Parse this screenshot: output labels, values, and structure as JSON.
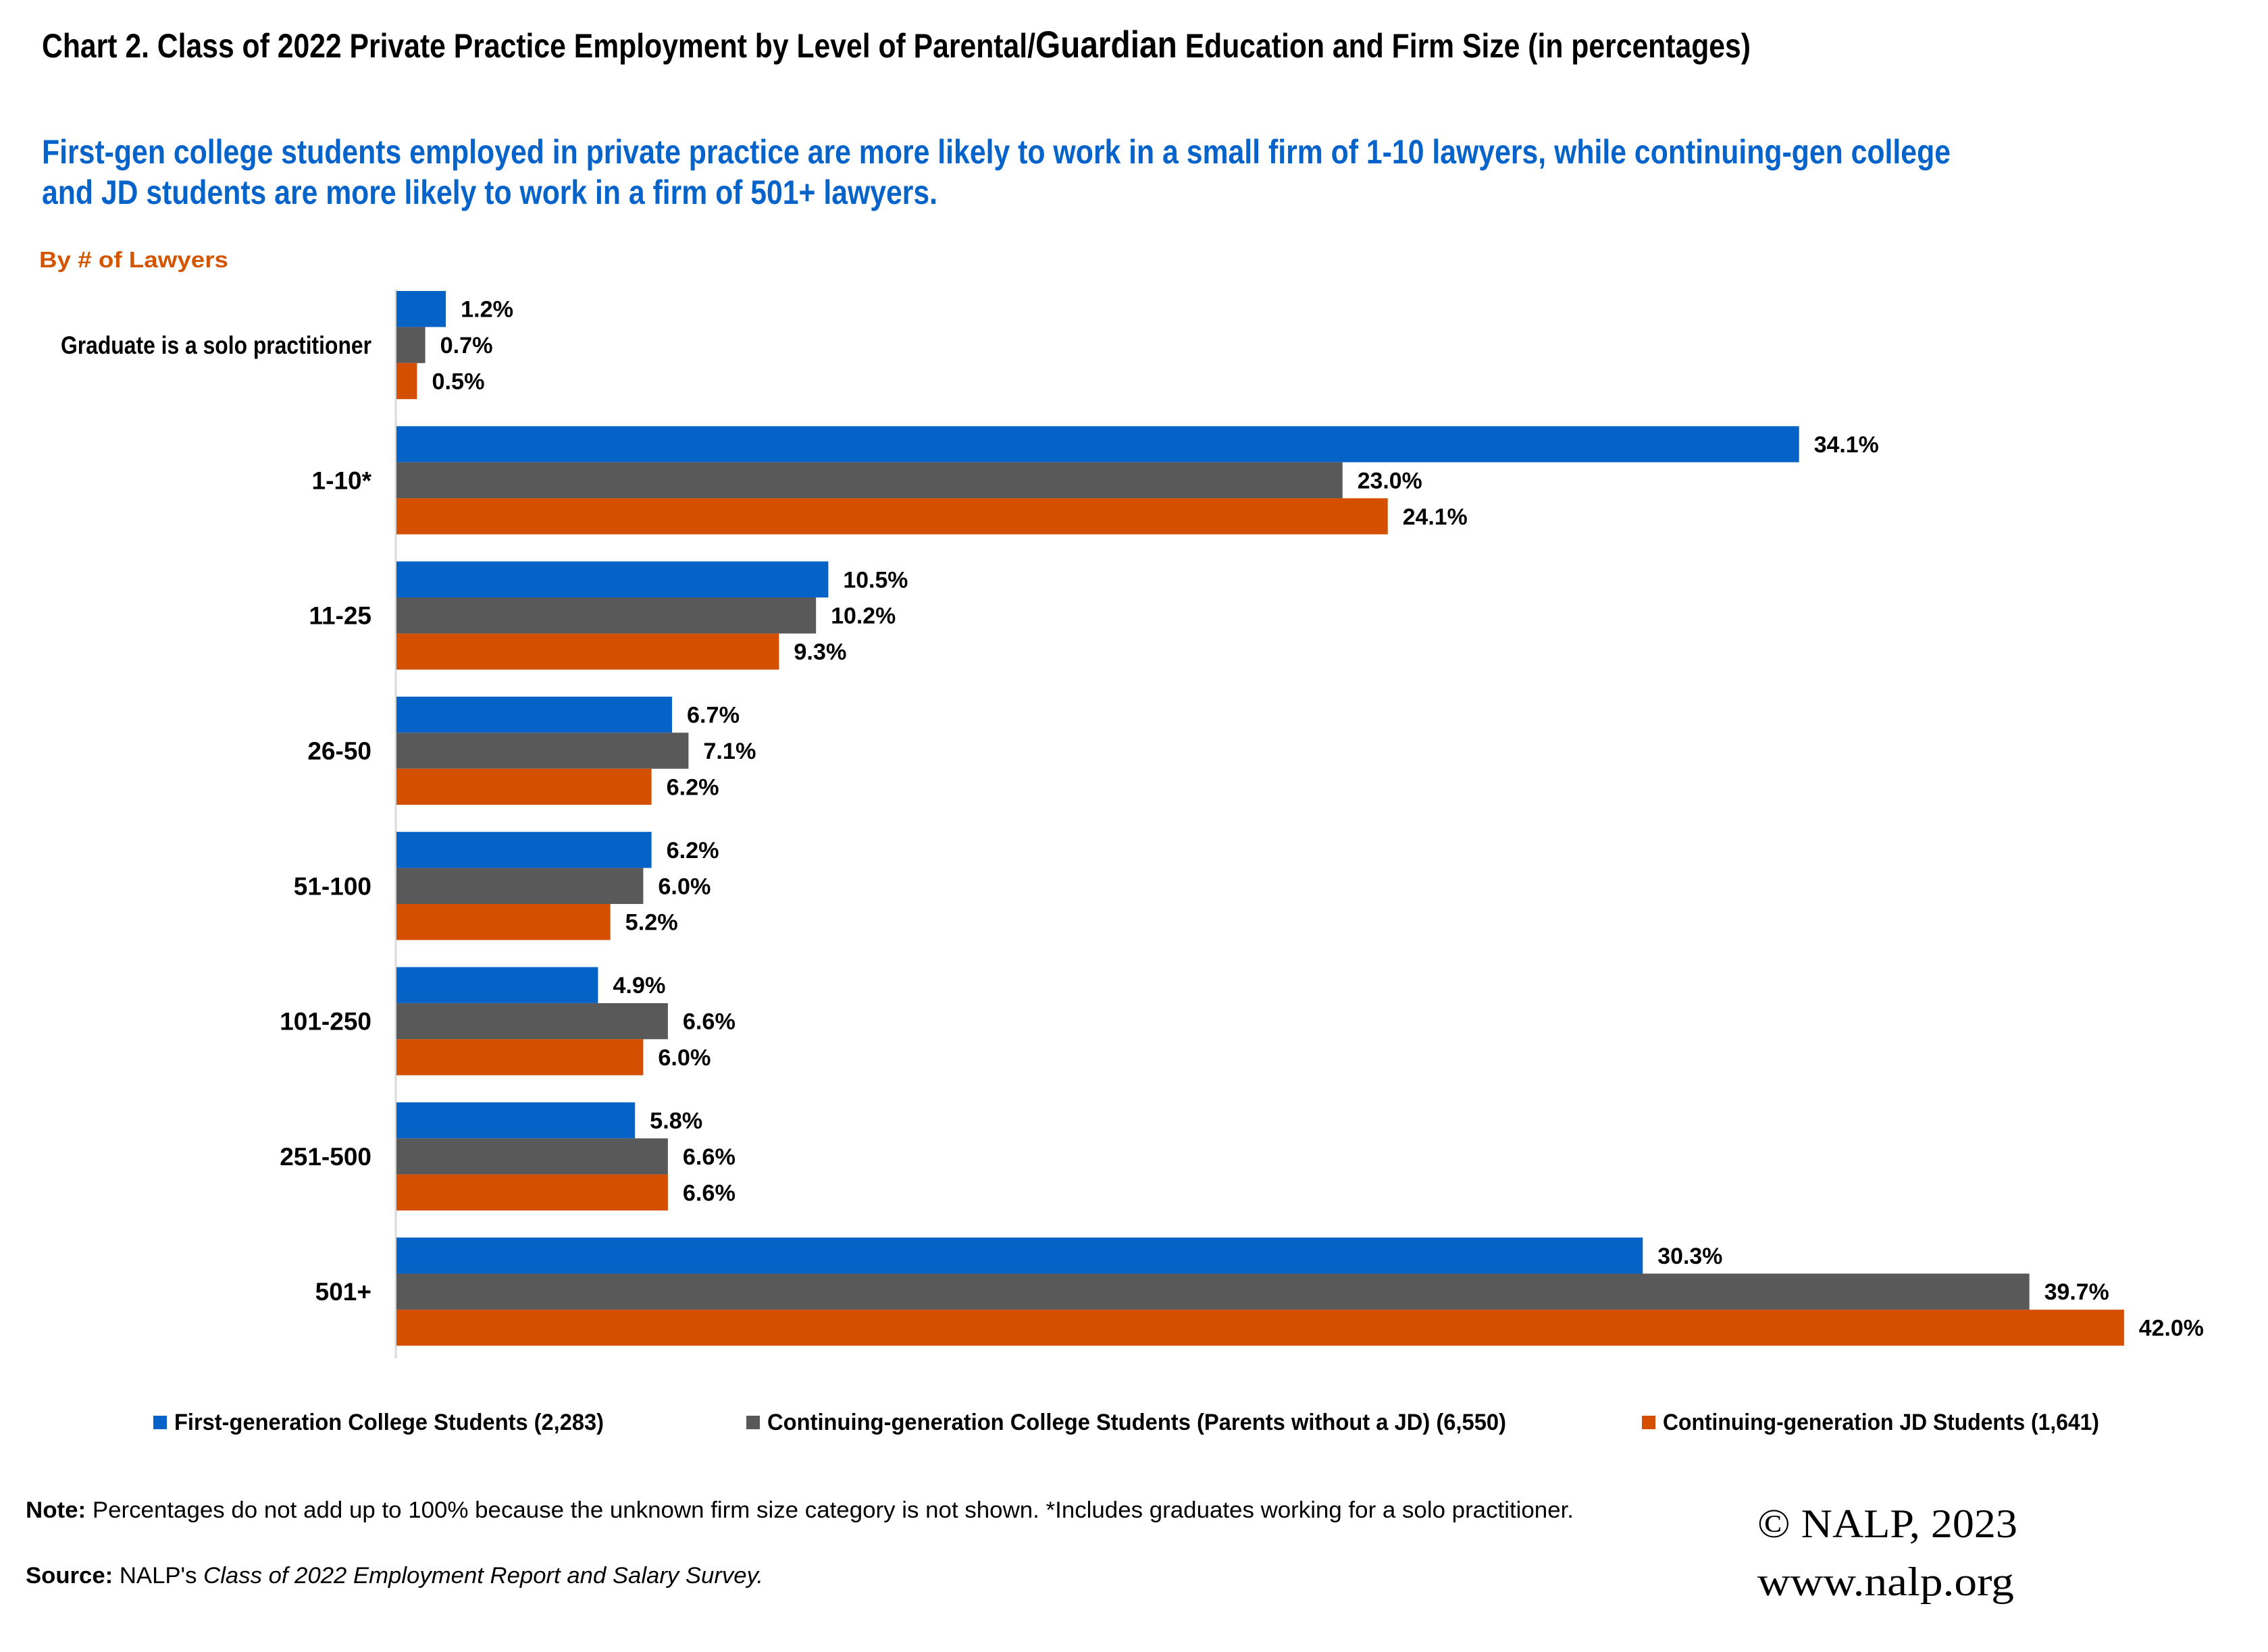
{
  "title": {
    "part1": "Chart 2. Class of 2022 Private Practice Employment by Level of Parental/",
    "part2": "Guardian",
    "part3": " Education and Firm Size (in percentages)"
  },
  "subtitle": {
    "line1": "First-gen college students employed in private practice are more likely to work in a small firm of 1-10 lawyers, while continuing-gen college",
    "line2": "and JD students are more likely to work in a firm of 501+ lawyers."
  },
  "axis_heading": "By # of Lawyers",
  "colors": {
    "first_gen": "#0563C8",
    "continuing_college": "#595959",
    "continuing_jd": "#D45000",
    "subtitle": "#0563C9",
    "axis_heading": "#D45500"
  },
  "chart_data": {
    "type": "bar",
    "orientation": "horizontal",
    "title": "Chart 2. Class of 2022 Private Practice Employment by Level of Parental/Guardian Education and Firm Size (in percentages)",
    "ylabel": "By # of Lawyers",
    "xlabel": "",
    "categories": [
      "Graduate is a solo practitioner",
      "1-10*",
      "11-25",
      "26-50",
      "51-100",
      "101-250",
      "251-500",
      "501+"
    ],
    "series": [
      {
        "name": "First-generation College Students (2,283)",
        "key": "first_gen",
        "values": [
          1.2,
          34.1,
          10.5,
          6.7,
          6.2,
          4.9,
          5.8,
          30.3
        ]
      },
      {
        "name": "Continuing-generation College Students (Parents without a JD) (6,550)",
        "key": "continuing_college",
        "values": [
          0.7,
          23.0,
          10.2,
          7.1,
          6.0,
          6.6,
          6.6,
          39.7
        ]
      },
      {
        "name": "Continuing-generation JD Students (1,641)",
        "key": "continuing_jd",
        "values": [
          0.5,
          24.1,
          9.3,
          6.2,
          5.2,
          6.0,
          6.6,
          42.0
        ]
      }
    ],
    "value_format": "percent_1dp",
    "xlim": [
      0,
      45
    ],
    "grid": false,
    "x_axis_visible": false,
    "legend_position": "bottom"
  },
  "legend": [
    {
      "label": "First-generation College Students (2,283)",
      "key": "first_gen"
    },
    {
      "label": "Continuing-generation College Students (Parents without a JD) (6,550)",
      "key": "continuing_college"
    },
    {
      "label": "Continuing-generation JD Students (1,641)",
      "key": "continuing_jd"
    }
  ],
  "note": {
    "label": "Note:",
    "text": " Percentages do not add up to 100% because the unknown firm size category is not shown.  *Includes graduates working for a solo practitioner."
  },
  "source": {
    "label": "Source:",
    "text_plain": " NALP's ",
    "text_italic": "Class of 2022 Employment Report and Salary Survey."
  },
  "copyright": {
    "line1": "© NALP, 2023",
    "line2": "www.nalp.org"
  }
}
